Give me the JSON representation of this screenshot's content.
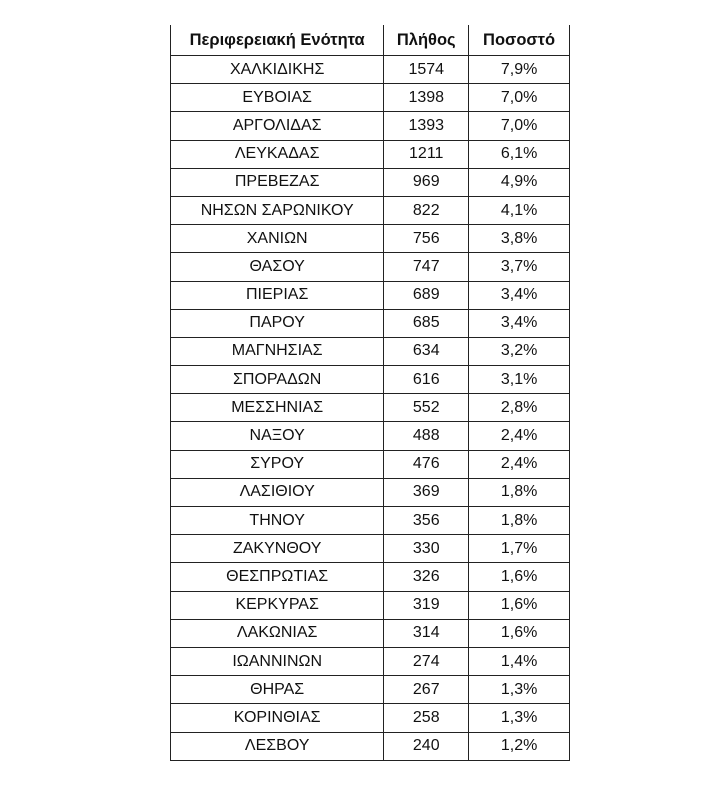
{
  "table": {
    "headers": [
      "Περιφερειακή Ενότητα",
      "Πλήθος",
      "Ποσοστό"
    ],
    "rows": [
      [
        "ΧΑΛΚΙΔΙΚΗΣ",
        "1574",
        "7,9%"
      ],
      [
        "ΕΥΒΟΙΑΣ",
        "1398",
        "7,0%"
      ],
      [
        "ΑΡΓΟΛΙΔΑΣ",
        "1393",
        "7,0%"
      ],
      [
        "ΛΕΥΚΑΔΑΣ",
        "1211",
        "6,1%"
      ],
      [
        "ΠΡΕΒΕΖΑΣ",
        "969",
        "4,9%"
      ],
      [
        "ΝΗΣΩΝ ΣΑΡΩΝΙΚΟΥ",
        "822",
        "4,1%"
      ],
      [
        "ΧΑΝΙΩΝ",
        "756",
        "3,8%"
      ],
      [
        "ΘΑΣΟΥ",
        "747",
        "3,7%"
      ],
      [
        "ΠΙΕΡΙΑΣ",
        "689",
        "3,4%"
      ],
      [
        "ΠΑΡΟΥ",
        "685",
        "3,4%"
      ],
      [
        "ΜΑΓΝΗΣΙΑΣ",
        "634",
        "3,2%"
      ],
      [
        "ΣΠΟΡΑΔΩΝ",
        "616",
        "3,1%"
      ],
      [
        "ΜΕΣΣΗΝΙΑΣ",
        "552",
        "2,8%"
      ],
      [
        "ΝΑΞΟΥ",
        "488",
        "2,4%"
      ],
      [
        "ΣΥΡΟΥ",
        "476",
        "2,4%"
      ],
      [
        "ΛΑΣΙΘΙΟΥ",
        "369",
        "1,8%"
      ],
      [
        "ΤΗΝΟΥ",
        "356",
        "1,8%"
      ],
      [
        "ΖΑΚΥΝΘΟΥ",
        "330",
        "1,7%"
      ],
      [
        "ΘΕΣΠΡΩΤΙΑΣ",
        "326",
        "1,6%"
      ],
      [
        "ΚΕΡΚΥΡΑΣ",
        "319",
        "1,6%"
      ],
      [
        "ΛΑΚΩΝΙΑΣ",
        "314",
        "1,6%"
      ],
      [
        "ΙΩΑΝΝΙΝΩΝ",
        "274",
        "1,4%"
      ],
      [
        "ΘΗΡΑΣ",
        "267",
        "1,3%"
      ],
      [
        "ΚΟΡΙΝΘΙΑΣ",
        "258",
        "1,3%"
      ],
      [
        "ΛΕΣΒΟΥ",
        "240",
        "1,2%"
      ]
    ]
  }
}
